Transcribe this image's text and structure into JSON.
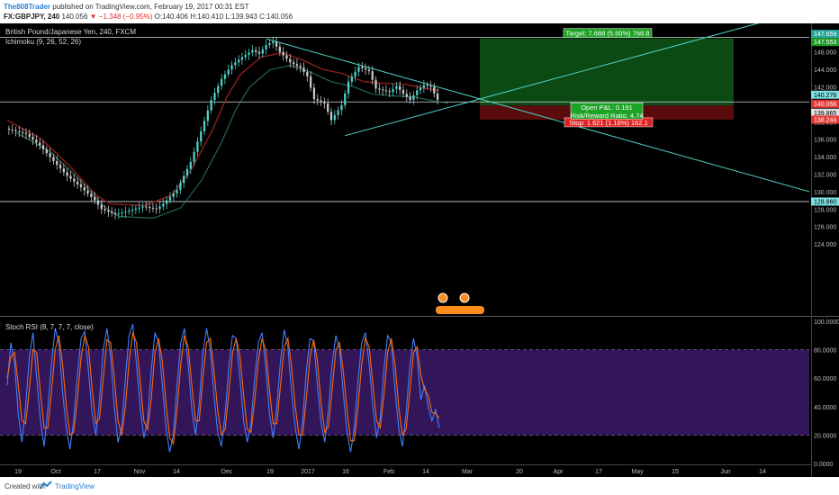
{
  "header": {
    "author": "The808Trader",
    "published": "published on TradingView.com, February 19, 2017 00:31 EST",
    "symbol": "FX:GBPJPY, 240",
    "last": "140.056",
    "change": "−1.348 (−0.95%)",
    "ohlc": "O:140.406 H:140.410 L:139.943 C:140.056"
  },
  "indicators": {
    "title": "British Pound/Japanese Yen, 240, FXCM",
    "ichimoku": "Ichimoku (9, 26, 52, 26)",
    "stoch": "Stoch RSI (8, 7, 7, 7, close)"
  },
  "colors": {
    "background": "#000000",
    "candle_up": "#4fd1c5",
    "candle_down": "#c8c8c8",
    "trendline": "#4fd1c5",
    "kijun": "#8b1e1e",
    "chikou": "#2e7d6e",
    "stoch_k": "#3f7fff",
    "stoch_d": "#ff6a00",
    "stoch_band": "#33155a",
    "target_zone": "#0c4a14",
    "stop_zone": "#5a0c0c"
  },
  "chart_data": [
    {
      "type": "candlestick",
      "title": "British Pound/Japanese Yen, 240, FXCM",
      "x_ticks": [
        "19",
        "Oct",
        "17",
        "Nov",
        "14",
        "Dec",
        "19",
        "2017",
        "16",
        "Feb",
        "14",
        "Mar",
        "20",
        "Apr",
        "17",
        "May",
        "15",
        "Jun",
        "14"
      ],
      "y_ticks": [
        "146.000",
        "144.000",
        "142.000",
        "138.000",
        "136.000",
        "134.000",
        "132.000",
        "130.000",
        "128.000",
        "126.000",
        "124.000"
      ],
      "ylim": [
        123.2,
        149.5
      ],
      "price_path": [
        [
          0,
          137.2
        ],
        [
          6,
          136.6
        ],
        [
          10,
          135.3
        ],
        [
          14,
          133.5
        ],
        [
          18,
          131.8
        ],
        [
          22,
          130.5
        ],
        [
          26,
          129.0
        ],
        [
          28,
          128.0
        ],
        [
          32,
          127.4
        ],
        [
          36,
          127.8
        ],
        [
          40,
          128.3
        ],
        [
          44,
          128.0
        ],
        [
          46,
          128.6
        ],
        [
          50,
          130.2
        ],
        [
          54,
          133.4
        ],
        [
          57,
          136.9
        ],
        [
          60,
          140.5
        ],
        [
          63,
          142.9
        ],
        [
          66,
          144.5
        ],
        [
          69,
          145.4
        ],
        [
          72,
          146.2
        ],
        [
          74,
          145.8
        ],
        [
          76,
          146.8
        ],
        [
          78,
          147.2
        ],
        [
          80,
          146.0
        ],
        [
          83,
          144.8
        ],
        [
          86,
          144.2
        ],
        [
          88,
          143.2
        ],
        [
          90,
          140.6
        ],
        [
          93,
          140.1
        ],
        [
          95,
          138.2
        ],
        [
          98,
          139.9
        ],
        [
          100,
          142.6
        ],
        [
          103,
          144.3
        ],
        [
          106,
          143.8
        ],
        [
          108,
          141.8
        ],
        [
          112,
          141.4
        ],
        [
          114,
          142.1
        ],
        [
          116,
          141.2
        ],
        [
          118,
          140.5
        ],
        [
          120,
          141.6
        ],
        [
          122,
          142.2
        ],
        [
          124,
          142.0
        ],
        [
          126,
          140.5
        ]
      ],
      "kijun_path": [
        [
          0,
          138.2
        ],
        [
          10,
          136.0
        ],
        [
          18,
          133.0
        ],
        [
          26,
          129.6
        ],
        [
          30,
          128.6
        ],
        [
          40,
          128.4
        ],
        [
          48,
          129.6
        ],
        [
          54,
          132.7
        ],
        [
          60,
          137.2
        ],
        [
          64,
          140.8
        ],
        [
          68,
          143.4
        ],
        [
          74,
          145.4
        ],
        [
          80,
          145.9
        ],
        [
          86,
          145.1
        ],
        [
          92,
          144.0
        ],
        [
          98,
          143.5
        ],
        [
          104,
          142.6
        ],
        [
          110,
          142.4
        ],
        [
          116,
          142.3
        ],
        [
          122,
          141.8
        ],
        [
          126,
          141.6
        ]
      ],
      "last_price": 140.056,
      "price_labels": [
        "147.659",
        "147.553",
        "140.276",
        "140.056",
        "139.865",
        "138.244",
        "128.860"
      ],
      "positions": [
        {
          "label": "Target: 7.688 (5.50%) 768.8",
          "price": 147.553,
          "zone": "target"
        },
        {
          "label": "Stop: 1.621 (1.16%) 162.1",
          "price": 138.244,
          "zone": "stop"
        }
      ],
      "entry": {
        "price": 139.865,
        "pnl": "Open P&L: 0.191",
        "ratio": "Risk/Reward Ratio: 4.74"
      },
      "horizontal_levels": [
        147.659,
        140.276,
        128.86
      ]
    },
    {
      "type": "line",
      "title": "Stoch RSI (8, 7, 7, 7, close)",
      "y_ticks": [
        "100.0000",
        "80.0000",
        "60.0000",
        "40.0000",
        "20.0000",
        "0.0000"
      ],
      "ylim": [
        0,
        100
      ],
      "band": [
        20,
        80
      ],
      "series": [
        {
          "color": "#3f7fff",
          "values": [
            55,
            85,
            70,
            35,
            15,
            40,
            75,
            92,
            60,
            30,
            12,
            38,
            70,
            95,
            85,
            50,
            25,
            10,
            30,
            62,
            88,
            93,
            65,
            35,
            20,
            45,
            80,
            95,
            75,
            40,
            15,
            25,
            60,
            90,
            98,
            70,
            40,
            18,
            30,
            65,
            92,
            85,
            55,
            25,
            8,
            20,
            55,
            85,
            95,
            70,
            38,
            20,
            42,
            78,
            95,
            80,
            48,
            22,
            12,
            35,
            68,
            90,
            88,
            60,
            30,
            15,
            28,
            60,
            85,
            92,
            68,
            35,
            18,
            40,
            72,
            94,
            82,
            50,
            25,
            10,
            30,
            65,
            88,
            86,
            55,
            28,
            15,
            38,
            70,
            90,
            80,
            50,
            22,
            8,
            25,
            58,
            85,
            92,
            70,
            40,
            18,
            32,
            66,
            90,
            85,
            52,
            25,
            12,
            35,
            68,
            88,
            75,
            45,
            55,
            40,
            30,
            38,
            25
          ]
        },
        {
          "color": "#ff6a00",
          "values": [
            60,
            75,
            78,
            55,
            30,
            28,
            52,
            80,
            78,
            50,
            25,
            25,
            50,
            80,
            90,
            70,
            40,
            20,
            22,
            45,
            75,
            90,
            82,
            52,
            28,
            32,
            60,
            87,
            85,
            60,
            30,
            20,
            40,
            72,
            92,
            85,
            58,
            30,
            24,
            45,
            78,
            88,
            72,
            42,
            18,
            14,
            38,
            70,
            90,
            82,
            55,
            30,
            30,
            60,
            85,
            88,
            65,
            38,
            20,
            24,
            50,
            78,
            88,
            76,
            48,
            24,
            22,
            44,
            72,
            88,
            80,
            52,
            28,
            28,
            55,
            82,
            88,
            68,
            40,
            20,
            20,
            46,
            75,
            87,
            72,
            42,
            22,
            26,
            52,
            80,
            85,
            65,
            38,
            16,
            16,
            40,
            70,
            88,
            82,
            56,
            30,
            25,
            48,
            78,
            88,
            70,
            40,
            20,
            24,
            50,
            78,
            82,
            62,
            52,
            48,
            36,
            35,
            32
          ]
        }
      ]
    }
  ],
  "footer": {
    "created": "Created with",
    "brand": "TradingView"
  }
}
